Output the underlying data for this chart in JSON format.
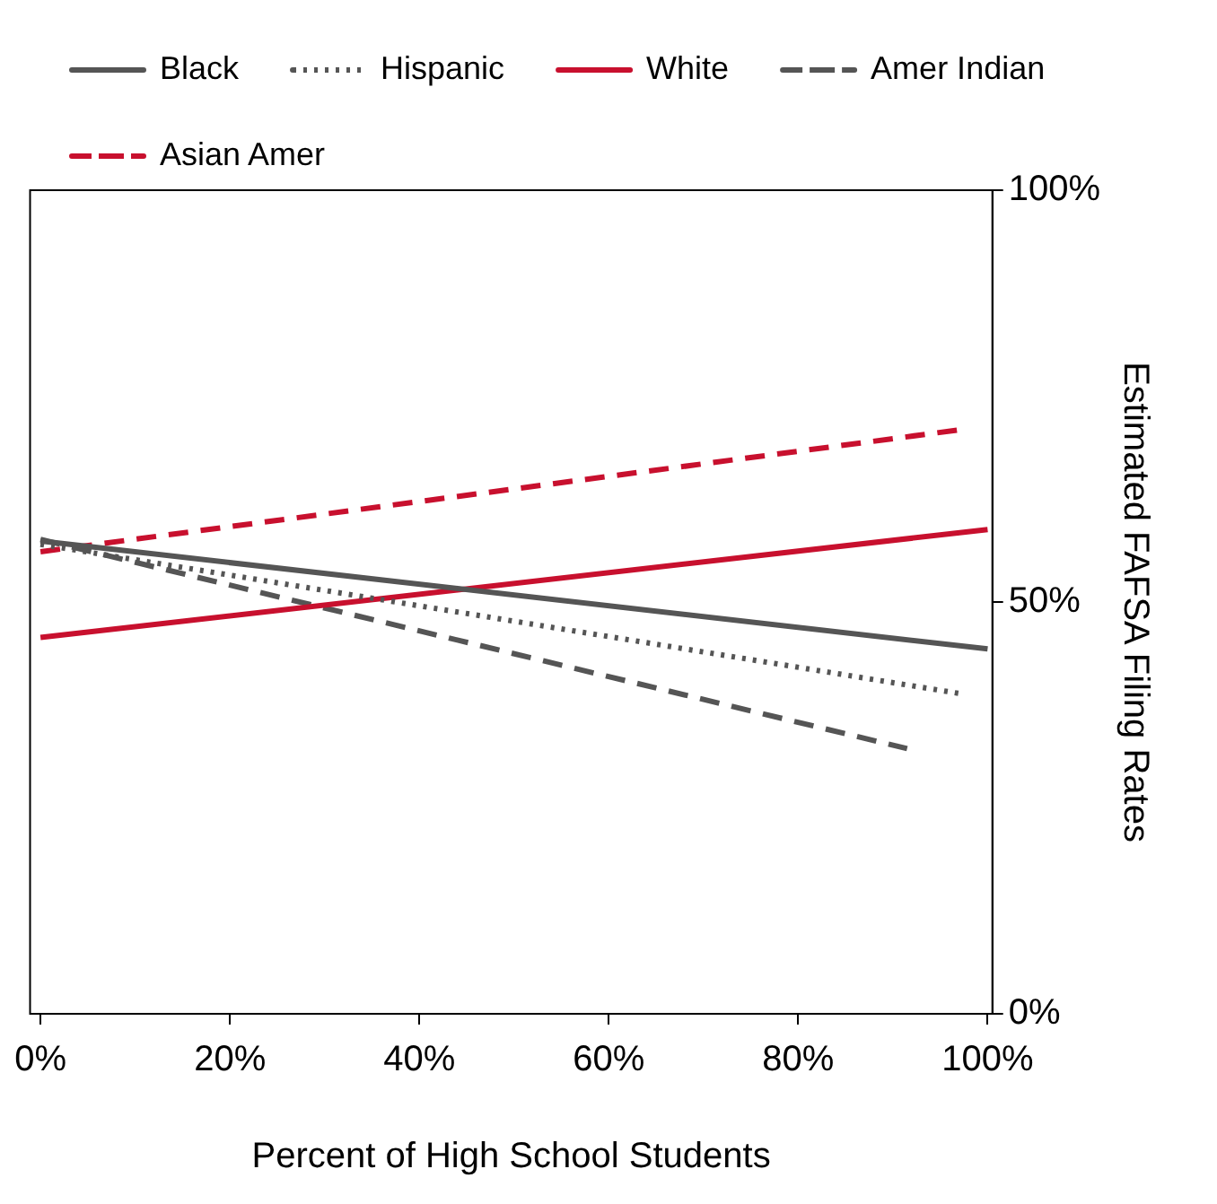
{
  "chart_data": {
    "type": "line",
    "xlabel": "Percent of High School Students",
    "ylabel": "Estimated FAFSA Filing Rates",
    "xlim": [
      -1.1,
      100.5
    ],
    "ylim": [
      0,
      100
    ],
    "xticks": [
      {
        "value": 0,
        "label": "0%"
      },
      {
        "value": 20,
        "label": "20%"
      },
      {
        "value": 40,
        "label": "40%"
      },
      {
        "value": 60,
        "label": "60%"
      },
      {
        "value": 80,
        "label": "80%"
      },
      {
        "value": 100,
        "label": "100%"
      }
    ],
    "yticks": [
      {
        "value": 0,
        "label": "0%"
      },
      {
        "value": 50,
        "label": "50%"
      },
      {
        "value": 100,
        "label": "100%"
      }
    ],
    "grid": false,
    "legend": "top",
    "marker": "none",
    "series": [
      {
        "name": "Black",
        "color": "#555555",
        "line_style": "solid",
        "x": [
          0,
          100
        ],
        "values": [
          57.4,
          44.3
        ]
      },
      {
        "name": "Hispanic",
        "color": "#555555",
        "line_style": "dotted",
        "x": [
          0,
          97
        ],
        "values": [
          57,
          38.9
        ]
      },
      {
        "name": "White",
        "color": "#c8102e",
        "line_style": "solid",
        "x": [
          0,
          100
        ],
        "values": [
          45.7,
          58.8
        ]
      },
      {
        "name": "Amer Indian",
        "color": "#555555",
        "line_style": "dashed",
        "x": [
          0,
          91.5
        ],
        "values": [
          57.6,
          32.2
        ]
      },
      {
        "name": "Asian Amer",
        "color": "#c8102e",
        "line_style": "dashed",
        "x": [
          0,
          97
        ],
        "values": [
          56.1,
          70.9
        ]
      }
    ]
  }
}
